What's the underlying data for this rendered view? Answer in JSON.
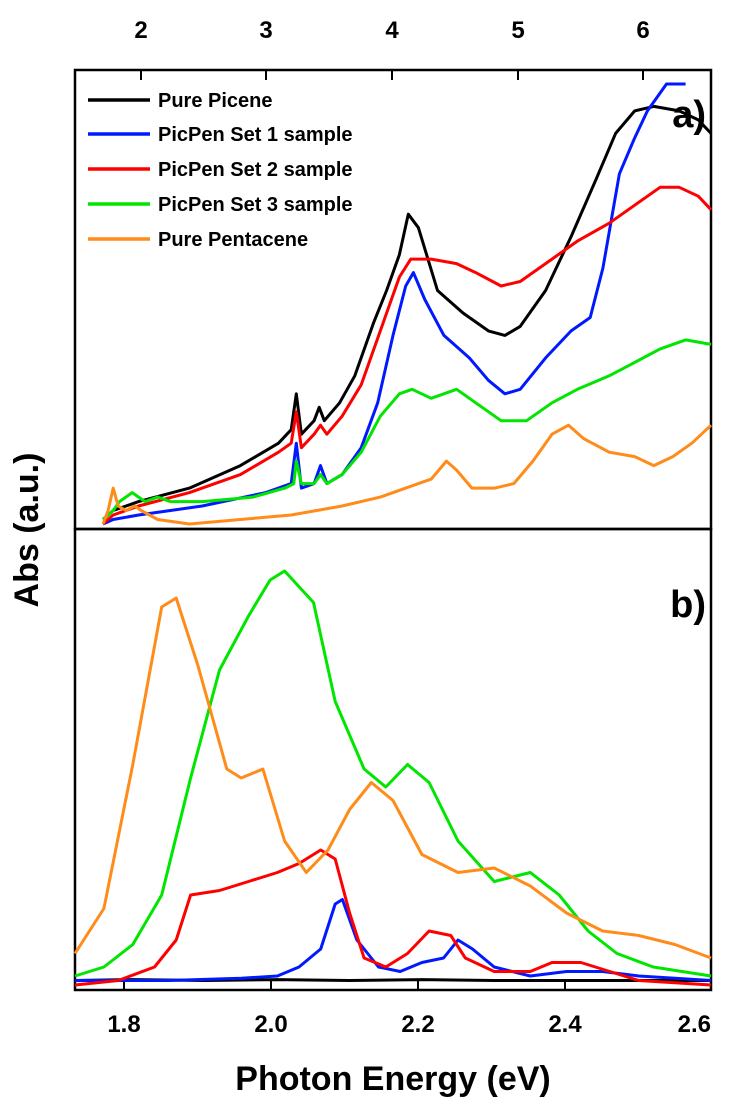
{
  "chart_data": [
    {
      "panel": "a",
      "panel_label": "a)",
      "type": "line",
      "title": "",
      "xlabel": "",
      "ylabel": "Abs (a.u.)",
      "top_axis": {
        "ticks": [
          2,
          3,
          4,
          5,
          6
        ],
        "xlim": [
          1.5,
          6.5
        ]
      },
      "legend": {
        "placement": "top-left"
      },
      "grid": false,
      "ylim": [
        0,
        1
      ],
      "series": [
        {
          "name": "Pure Picene",
          "color": "#000000",
          "points": [
            [
              1.72,
              0.01
            ],
            [
              1.8,
              0.03
            ],
            [
              2.0,
              0.05
            ],
            [
              2.4,
              0.08
            ],
            [
              2.8,
              0.13
            ],
            [
              3.1,
              0.18
            ],
            [
              3.2,
              0.21
            ],
            [
              3.24,
              0.29
            ],
            [
              3.28,
              0.2
            ],
            [
              3.38,
              0.23
            ],
            [
              3.42,
              0.26
            ],
            [
              3.46,
              0.23
            ],
            [
              3.58,
              0.27
            ],
            [
              3.7,
              0.33
            ],
            [
              3.85,
              0.45
            ],
            [
              3.95,
              0.52
            ],
            [
              4.05,
              0.6
            ],
            [
              4.12,
              0.69
            ],
            [
              4.2,
              0.66
            ],
            [
              4.35,
              0.52
            ],
            [
              4.55,
              0.47
            ],
            [
              4.75,
              0.43
            ],
            [
              4.88,
              0.42
            ],
            [
              5.0,
              0.44
            ],
            [
              5.2,
              0.52
            ],
            [
              5.4,
              0.64
            ],
            [
              5.6,
              0.77
            ],
            [
              5.75,
              0.87
            ],
            [
              5.9,
              0.92
            ],
            [
              6.05,
              0.93
            ],
            [
              6.25,
              0.92
            ],
            [
              6.4,
              0.9
            ],
            [
              6.5,
              0.87
            ]
          ]
        },
        {
          "name": "PicPen Set 1 sample",
          "color": "#0019ff",
          "points": [
            [
              1.72,
              0.0
            ],
            [
              1.8,
              0.01
            ],
            [
              2.0,
              0.02
            ],
            [
              2.5,
              0.04
            ],
            [
              3.0,
              0.07
            ],
            [
              3.2,
              0.09
            ],
            [
              3.24,
              0.18
            ],
            [
              3.28,
              0.08
            ],
            [
              3.38,
              0.09
            ],
            [
              3.43,
              0.13
            ],
            [
              3.48,
              0.09
            ],
            [
              3.6,
              0.11
            ],
            [
              3.75,
              0.17
            ],
            [
              3.88,
              0.27
            ],
            [
              4.0,
              0.42
            ],
            [
              4.1,
              0.53
            ],
            [
              4.16,
              0.56
            ],
            [
              4.25,
              0.5
            ],
            [
              4.4,
              0.42
            ],
            [
              4.6,
              0.37
            ],
            [
              4.75,
              0.32
            ],
            [
              4.88,
              0.29
            ],
            [
              5.0,
              0.3
            ],
            [
              5.2,
              0.37
            ],
            [
              5.4,
              0.43
            ],
            [
              5.55,
              0.46
            ],
            [
              5.65,
              0.57
            ],
            [
              5.78,
              0.78
            ],
            [
              5.9,
              0.86
            ],
            [
              6.0,
              0.92
            ],
            [
              6.15,
              0.98
            ],
            [
              6.3,
              0.98
            ]
          ]
        },
        {
          "name": "PicPen Set 2 sample",
          "color": "#ff0000",
          "points": [
            [
              1.72,
              0.0
            ],
            [
              1.8,
              0.02
            ],
            [
              2.0,
              0.04
            ],
            [
              2.4,
              0.07
            ],
            [
              2.8,
              0.11
            ],
            [
              3.1,
              0.16
            ],
            [
              3.2,
              0.18
            ],
            [
              3.24,
              0.25
            ],
            [
              3.28,
              0.17
            ],
            [
              3.38,
              0.2
            ],
            [
              3.43,
              0.22
            ],
            [
              3.48,
              0.2
            ],
            [
              3.6,
              0.24
            ],
            [
              3.75,
              0.31
            ],
            [
              3.9,
              0.43
            ],
            [
              4.05,
              0.55
            ],
            [
              4.14,
              0.59
            ],
            [
              4.3,
              0.59
            ],
            [
              4.5,
              0.58
            ],
            [
              4.65,
              0.56
            ],
            [
              4.85,
              0.53
            ],
            [
              5.0,
              0.54
            ],
            [
              5.2,
              0.58
            ],
            [
              5.45,
              0.63
            ],
            [
              5.7,
              0.67
            ],
            [
              5.9,
              0.71
            ],
            [
              6.1,
              0.75
            ],
            [
              6.25,
              0.75
            ],
            [
              6.4,
              0.73
            ],
            [
              6.5,
              0.7
            ]
          ]
        },
        {
          "name": "PicPen Set 3 sample",
          "color": "#00e600",
          "points": [
            [
              1.72,
              0.01
            ],
            [
              1.8,
              0.03
            ],
            [
              1.85,
              0.05
            ],
            [
              1.95,
              0.07
            ],
            [
              2.05,
              0.05
            ],
            [
              2.15,
              0.06
            ],
            [
              2.25,
              0.05
            ],
            [
              2.5,
              0.05
            ],
            [
              2.9,
              0.06
            ],
            [
              3.15,
              0.08
            ],
            [
              3.22,
              0.09
            ],
            [
              3.24,
              0.14
            ],
            [
              3.28,
              0.09
            ],
            [
              3.38,
              0.09
            ],
            [
              3.43,
              0.11
            ],
            [
              3.48,
              0.09
            ],
            [
              3.6,
              0.11
            ],
            [
              3.75,
              0.16
            ],
            [
              3.9,
              0.24
            ],
            [
              4.05,
              0.29
            ],
            [
              4.15,
              0.3
            ],
            [
              4.3,
              0.28
            ],
            [
              4.5,
              0.3
            ],
            [
              4.65,
              0.27
            ],
            [
              4.85,
              0.23
            ],
            [
              5.05,
              0.23
            ],
            [
              5.25,
              0.27
            ],
            [
              5.45,
              0.3
            ],
            [
              5.7,
              0.33
            ],
            [
              5.9,
              0.36
            ],
            [
              6.1,
              0.39
            ],
            [
              6.3,
              0.41
            ],
            [
              6.5,
              0.4
            ]
          ]
        },
        {
          "name": "Pure Pentacene",
          "color": "#ff8c1a",
          "points": [
            [
              1.72,
              0.0
            ],
            [
              1.76,
              0.03
            ],
            [
              1.8,
              0.08
            ],
            [
              1.84,
              0.04
            ],
            [
              1.9,
              0.03
            ],
            [
              1.97,
              0.04
            ],
            [
              2.02,
              0.03
            ],
            [
              2.15,
              0.01
            ],
            [
              2.4,
              0.0
            ],
            [
              2.8,
              0.01
            ],
            [
              3.2,
              0.02
            ],
            [
              3.6,
              0.04
            ],
            [
              3.9,
              0.06
            ],
            [
              4.1,
              0.08
            ],
            [
              4.3,
              0.1
            ],
            [
              4.42,
              0.14
            ],
            [
              4.5,
              0.12
            ],
            [
              4.62,
              0.08
            ],
            [
              4.8,
              0.08
            ],
            [
              4.95,
              0.09
            ],
            [
              5.1,
              0.14
            ],
            [
              5.25,
              0.2
            ],
            [
              5.38,
              0.22
            ],
            [
              5.5,
              0.19
            ],
            [
              5.7,
              0.16
            ],
            [
              5.9,
              0.15
            ],
            [
              6.05,
              0.13
            ],
            [
              6.2,
              0.15
            ],
            [
              6.35,
              0.18
            ],
            [
              6.5,
              0.22
            ]
          ]
        }
      ]
    },
    {
      "panel": "b",
      "panel_label": "b)",
      "type": "line",
      "title": "",
      "xlabel": "Photon Energy (eV)",
      "ylabel": "Abs (a.u.)",
      "xticks": [
        "1.8",
        "2.0",
        "2.2",
        "2.4",
        "2.6"
      ],
      "xlim": [
        1.72,
        2.6
      ],
      "ylim": [
        0,
        1
      ],
      "grid": false,
      "series": [
        {
          "name": "Pure Picene",
          "color": "#000000",
          "points": [
            [
              1.72,
              0.01
            ],
            [
              1.8,
              0.012
            ],
            [
              1.9,
              0.01
            ],
            [
              2.0,
              0.012
            ],
            [
              2.1,
              0.01
            ],
            [
              2.2,
              0.012
            ],
            [
              2.3,
              0.01
            ],
            [
              2.4,
              0.01
            ],
            [
              2.5,
              0.01
            ],
            [
              2.6,
              0.01
            ]
          ]
        },
        {
          "name": "PicPen Set 1 sample",
          "color": "#0019ff",
          "points": [
            [
              1.72,
              0.01
            ],
            [
              1.85,
              0.01
            ],
            [
              1.95,
              0.015
            ],
            [
              2.0,
              0.02
            ],
            [
              2.03,
              0.04
            ],
            [
              2.06,
              0.08
            ],
            [
              2.08,
              0.18
            ],
            [
              2.09,
              0.19
            ],
            [
              2.11,
              0.1
            ],
            [
              2.14,
              0.04
            ],
            [
              2.17,
              0.03
            ],
            [
              2.2,
              0.05
            ],
            [
              2.23,
              0.06
            ],
            [
              2.25,
              0.1
            ],
            [
              2.27,
              0.08
            ],
            [
              2.3,
              0.04
            ],
            [
              2.35,
              0.02
            ],
            [
              2.4,
              0.03
            ],
            [
              2.45,
              0.03
            ],
            [
              2.5,
              0.02
            ],
            [
              2.55,
              0.015
            ],
            [
              2.6,
              0.01
            ]
          ]
        },
        {
          "name": "PicPen Set 2 sample",
          "color": "#ff0000",
          "points": [
            [
              1.72,
              0.0
            ],
            [
              1.78,
              0.01
            ],
            [
              1.83,
              0.04
            ],
            [
              1.86,
              0.1
            ],
            [
              1.88,
              0.2
            ],
            [
              1.92,
              0.21
            ],
            [
              1.96,
              0.23
            ],
            [
              2.0,
              0.25
            ],
            [
              2.03,
              0.27
            ],
            [
              2.06,
              0.3
            ],
            [
              2.08,
              0.28
            ],
            [
              2.1,
              0.16
            ],
            [
              2.12,
              0.06
            ],
            [
              2.15,
              0.04
            ],
            [
              2.18,
              0.07
            ],
            [
              2.21,
              0.12
            ],
            [
              2.24,
              0.11
            ],
            [
              2.26,
              0.06
            ],
            [
              2.3,
              0.03
            ],
            [
              2.35,
              0.03
            ],
            [
              2.38,
              0.05
            ],
            [
              2.42,
              0.05
            ],
            [
              2.46,
              0.03
            ],
            [
              2.5,
              0.01
            ],
            [
              2.6,
              0.0
            ]
          ]
        },
        {
          "name": "PicPen Set 3 sample",
          "color": "#00e600",
          "points": [
            [
              1.72,
              0.02
            ],
            [
              1.76,
              0.04
            ],
            [
              1.8,
              0.09
            ],
            [
              1.84,
              0.2
            ],
            [
              1.88,
              0.46
            ],
            [
              1.92,
              0.7
            ],
            [
              1.96,
              0.82
            ],
            [
              1.99,
              0.9
            ],
            [
              2.01,
              0.92
            ],
            [
              2.05,
              0.85
            ],
            [
              2.08,
              0.63
            ],
            [
              2.12,
              0.48
            ],
            [
              2.15,
              0.44
            ],
            [
              2.18,
              0.49
            ],
            [
              2.21,
              0.45
            ],
            [
              2.25,
              0.32
            ],
            [
              2.3,
              0.23
            ],
            [
              2.35,
              0.25
            ],
            [
              2.39,
              0.2
            ],
            [
              2.43,
              0.12
            ],
            [
              2.47,
              0.07
            ],
            [
              2.52,
              0.04
            ],
            [
              2.6,
              0.02
            ]
          ]
        },
        {
          "name": "Pure Pentacene",
          "color": "#ff8c1a",
          "points": [
            [
              1.72,
              0.07
            ],
            [
              1.76,
              0.17
            ],
            [
              1.8,
              0.49
            ],
            [
              1.84,
              0.84
            ],
            [
              1.86,
              0.86
            ],
            [
              1.89,
              0.71
            ],
            [
              1.93,
              0.48
            ],
            [
              1.95,
              0.46
            ],
            [
              1.98,
              0.48
            ],
            [
              2.01,
              0.32
            ],
            [
              2.04,
              0.25
            ],
            [
              2.07,
              0.3
            ],
            [
              2.1,
              0.39
            ],
            [
              2.13,
              0.45
            ],
            [
              2.16,
              0.41
            ],
            [
              2.2,
              0.29
            ],
            [
              2.25,
              0.25
            ],
            [
              2.3,
              0.26
            ],
            [
              2.35,
              0.22
            ],
            [
              2.4,
              0.16
            ],
            [
              2.45,
              0.12
            ],
            [
              2.5,
              0.11
            ],
            [
              2.55,
              0.09
            ],
            [
              2.6,
              0.06
            ]
          ]
        }
      ]
    }
  ]
}
